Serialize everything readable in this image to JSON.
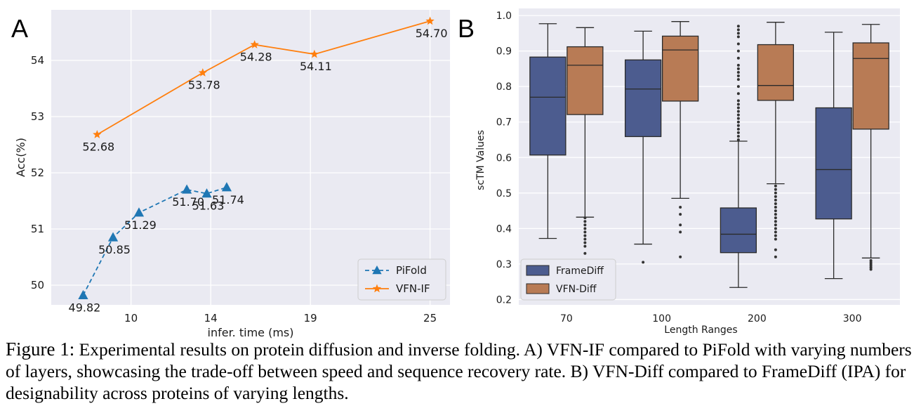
{
  "panel_labels": {
    "a": "A",
    "b": "B"
  },
  "caption": {
    "label": "Figure 1:",
    "text": "Experimental results on protein diffusion and inverse folding. A) VFN-IF compared to PiFold with varying numbers of layers, showcasing the trade-off between speed and sequence recovery rate. B) VFN-Diff compared to FrameDiff (IPA) for designability across proteins of varying lengths."
  },
  "chart_data": [
    {
      "type": "line",
      "panel": "A",
      "xlabel": "infer. time (ms)",
      "ylabel": "Acc(%)",
      "xticks": [
        "10",
        "14",
        "19",
        "25"
      ],
      "xtick_positions": [
        10,
        14,
        19,
        25
      ],
      "xlim": [
        6,
        26
      ],
      "yticks": [
        "50",
        "51",
        "52",
        "53",
        "54"
      ],
      "ylim": [
        49.65,
        54.9
      ],
      "grid": true,
      "legend_position": "lower-right",
      "series": [
        {
          "name": "PiFold",
          "color": "#1f77b4",
          "style": "dashed",
          "marker": "triangle",
          "x": [
            7.6,
            9.1,
            10.4,
            12.8,
            13.8,
            14.8
          ],
          "y": [
            49.82,
            50.85,
            51.29,
            51.7,
            51.63,
            51.74
          ],
          "labels": [
            "49.82",
            "50.85",
            "51.29",
            "51.70",
            "51.63",
            "51.74"
          ]
        },
        {
          "name": "VFN-IF",
          "color": "#ff7f0e",
          "style": "solid",
          "marker": "star",
          "x": [
            8.3,
            13.6,
            16.2,
            19.2,
            25.0
          ],
          "y": [
            52.68,
            53.78,
            54.28,
            54.11,
            54.7
          ],
          "labels": [
            "52.68",
            "53.78",
            "54.28",
            "54.11",
            "54.70"
          ]
        }
      ]
    },
    {
      "type": "box",
      "panel": "B",
      "xlabel": "Length Ranges",
      "ylabel": "scTM Values",
      "categories": [
        "70",
        "100",
        "200",
        "300"
      ],
      "yticks": [
        "0.2",
        "0.3",
        "0.4",
        "0.5",
        "0.6",
        "0.7",
        "0.8",
        "0.9",
        "1.0"
      ],
      "ylim": [
        0.2,
        1.0
      ],
      "grid": true,
      "legend_position": "lower-left",
      "series": [
        {
          "name": "FrameDiff",
          "color": "#4c5c8f",
          "boxes": [
            {
              "whislo": 0.372,
              "q1": 0.607,
              "med": 0.77,
              "q3": 0.883,
              "whishi": 0.977,
              "fliers": []
            },
            {
              "whislo": 0.356,
              "q1": 0.659,
              "med": 0.793,
              "q3": 0.875,
              "whishi": 0.956,
              "fliers": [
                0.305
              ]
            },
            {
              "whislo": 0.234,
              "q1": 0.332,
              "med": 0.384,
              "q3": 0.458,
              "whishi": 0.646,
              "fliers": [
                0.65,
                0.66,
                0.67,
                0.68,
                0.69,
                0.7,
                0.71,
                0.72,
                0.73,
                0.74,
                0.75,
                0.76,
                0.78,
                0.8,
                0.82,
                0.83,
                0.84,
                0.85,
                0.86,
                0.88,
                0.9,
                0.92,
                0.94,
                0.95,
                0.96,
                0.97
              ]
            },
            {
              "whislo": 0.259,
              "q1": 0.427,
              "med": 0.566,
              "q3": 0.74,
              "whishi": 0.953,
              "fliers": []
            }
          ]
        },
        {
          "name": "VFN-Diff",
          "color": "#b87b55",
          "boxes": [
            {
              "whislo": 0.432,
              "q1": 0.721,
              "med": 0.86,
              "q3": 0.912,
              "whishi": 0.966,
              "fliers": [
                0.33,
                0.35,
                0.36,
                0.37,
                0.38,
                0.39,
                0.4,
                0.41,
                0.42,
                0.43
              ]
            },
            {
              "whislo": 0.485,
              "q1": 0.759,
              "med": 0.903,
              "q3": 0.942,
              "whishi": 0.983,
              "fliers": [
                0.32,
                0.39,
                0.41,
                0.44,
                0.46
              ]
            },
            {
              "whislo": 0.526,
              "q1": 0.761,
              "med": 0.803,
              "q3": 0.918,
              "whishi": 0.981,
              "fliers": [
                0.32,
                0.34,
                0.37,
                0.38,
                0.39,
                0.4,
                0.41,
                0.42,
                0.43,
                0.44,
                0.45,
                0.46,
                0.47,
                0.48,
                0.49,
                0.5,
                0.51,
                0.52
              ]
            },
            {
              "whislo": 0.317,
              "q1": 0.68,
              "med": 0.879,
              "q3": 0.923,
              "whishi": 0.975,
              "fliers": [
                0.285,
                0.29,
                0.295,
                0.3,
                0.305,
                0.31
              ]
            }
          ]
        }
      ]
    }
  ]
}
